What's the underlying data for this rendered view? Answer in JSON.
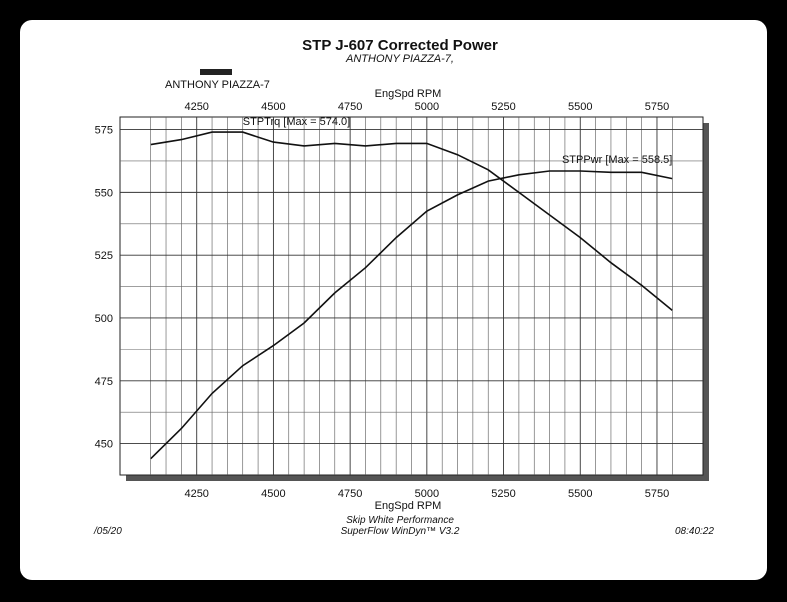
{
  "chart_data": {
    "type": "line",
    "title": "STP J-607 Corrected Power",
    "subtitle": "ANTHONY PIAZZA-7,",
    "legend_label": "ANTHONY PIAZZA-7",
    "xlabel_top": "EngSpd RPM",
    "xlabel": "EngSpd RPM",
    "x_ticks": [
      "4250",
      "4500",
      "4750",
      "5000",
      "5250",
      "5500",
      "5750"
    ],
    "y_ticks": [
      "450",
      "475",
      "500",
      "525",
      "550",
      "575"
    ],
    "xlim": [
      4000,
      5900
    ],
    "ylim": [
      437.5,
      580
    ],
    "grid": true,
    "series": [
      {
        "name": "STPTrq [Max = 574.0]",
        "x": [
          4100,
          4200,
          4300,
          4400,
          4500,
          4600,
          4700,
          4800,
          4900,
          5000,
          5100,
          5200,
          5300,
          5400,
          5500,
          5600,
          5700,
          5800
        ],
        "values": [
          569,
          571,
          574,
          574,
          570,
          568.5,
          569.5,
          568.5,
          569.5,
          569.5,
          565,
          559,
          550,
          541,
          532,
          522,
          513,
          503
        ]
      },
      {
        "name": "STPPwr [Max = 558.5]",
        "x": [
          4100,
          4200,
          4300,
          4400,
          4500,
          4600,
          4700,
          4800,
          4900,
          5000,
          5100,
          5200,
          5300,
          5400,
          5500,
          5600,
          5700,
          5800
        ],
        "values": [
          444,
          456,
          470,
          481,
          489,
          498,
          510,
          520,
          532,
          542.5,
          549,
          554.5,
          557,
          558.5,
          558.5,
          558,
          558,
          555.5
        ]
      }
    ]
  },
  "footer": {
    "date": "/05/20",
    "company": "Skip White Performance",
    "software": "SuperFlow WinDyn™ V3.2",
    "time": "08:40:22"
  }
}
